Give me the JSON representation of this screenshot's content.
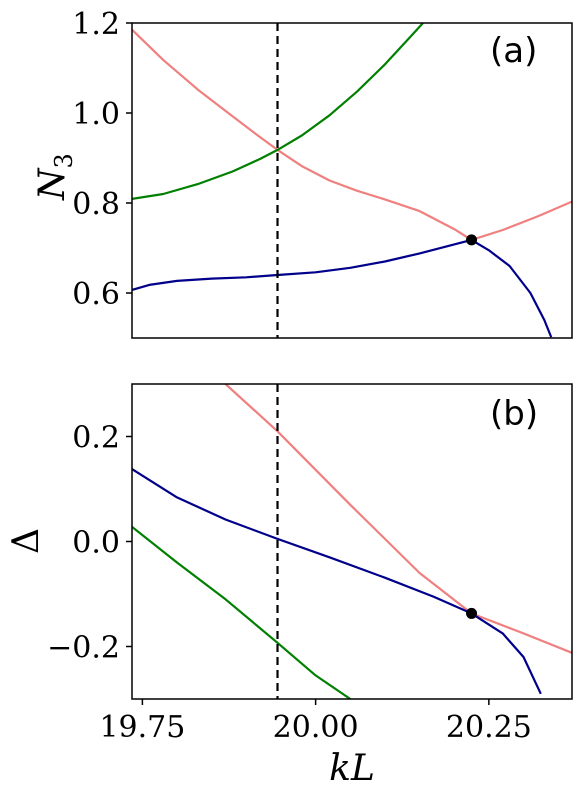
{
  "chart_data": [
    {
      "type": "line",
      "panel_label": "(a)",
      "ylabel_main": "N",
      "ylabel_sub": "3",
      "xlim": [
        19.735,
        20.37
      ],
      "ylim": [
        0.5,
        1.2
      ],
      "yticks": [
        0.6,
        0.8,
        1.0,
        1.2
      ],
      "ytick_labels": [
        "0.6",
        "0.8",
        "1.0",
        "1.2"
      ],
      "show_x_tick_labels": false,
      "grid": false,
      "vline_x": 19.945,
      "marker": {
        "x": 20.225,
        "y": 0.718
      },
      "series": [
        {
          "color": "#f08080",
          "x": [
            19.735,
            19.78,
            19.83,
            19.88,
            19.92,
            19.945,
            19.98,
            20.02,
            20.06,
            20.1,
            20.15,
            20.2,
            20.225,
            20.27,
            20.32,
            20.37
          ],
          "y": [
            1.185,
            1.118,
            1.052,
            0.993,
            0.946,
            0.918,
            0.882,
            0.85,
            0.827,
            0.808,
            0.782,
            0.742,
            0.718,
            0.74,
            0.77,
            0.803
          ]
        },
        {
          "color": "#008000",
          "x": [
            19.735,
            19.78,
            19.83,
            19.88,
            19.92,
            19.945,
            19.98,
            20.02,
            20.06,
            20.1,
            20.13,
            20.155
          ],
          "y": [
            0.809,
            0.82,
            0.842,
            0.87,
            0.898,
            0.918,
            0.95,
            0.995,
            1.048,
            1.108,
            1.158,
            1.2
          ]
        },
        {
          "color": "#00008b",
          "x": [
            19.735,
            19.76,
            19.8,
            19.85,
            19.9,
            19.945,
            20.0,
            20.05,
            20.1,
            20.15,
            20.2,
            20.225,
            20.25,
            20.28,
            20.31,
            20.33,
            20.34
          ],
          "y": [
            0.607,
            0.618,
            0.627,
            0.632,
            0.635,
            0.64,
            0.646,
            0.656,
            0.67,
            0.688,
            0.708,
            0.718,
            0.695,
            0.66,
            0.6,
            0.54,
            0.502
          ]
        }
      ]
    },
    {
      "type": "line",
      "panel_label": "(b)",
      "ylabel": "Δ",
      "xlabel": "kL",
      "xlim": [
        19.735,
        20.37
      ],
      "ylim": [
        -0.3,
        0.3
      ],
      "xticks": [
        19.75,
        20.0,
        20.25
      ],
      "xtick_labels": [
        "19.75",
        "20.00",
        "20.25"
      ],
      "yticks": [
        -0.2,
        0.0,
        0.2
      ],
      "ytick_labels": [
        "−0.2",
        "0.0",
        "0.2"
      ],
      "grid": false,
      "vline_x": 19.945,
      "marker": {
        "x": 20.225,
        "y": -0.137
      },
      "series": [
        {
          "color": "#f08080",
          "x": [
            19.87,
            19.945,
            20.05,
            20.15,
            20.225,
            20.3,
            20.37
          ],
          "y": [
            0.3,
            0.21,
            0.07,
            -0.06,
            -0.137,
            -0.175,
            -0.212
          ]
        },
        {
          "color": "#008000",
          "x": [
            19.735,
            19.8,
            19.87,
            19.945,
            20.0,
            20.05
          ],
          "y": [
            0.028,
            -0.04,
            -0.11,
            -0.193,
            -0.255,
            -0.3
          ]
        },
        {
          "color": "#00008b",
          "x": [
            19.735,
            19.8,
            19.87,
            19.945,
            20.02,
            20.1,
            20.17,
            20.225,
            20.27,
            20.3,
            20.325
          ],
          "y": [
            0.138,
            0.084,
            0.042,
            0.005,
            -0.03,
            -0.069,
            -0.105,
            -0.137,
            -0.175,
            -0.22,
            -0.29
          ]
        }
      ]
    }
  ]
}
